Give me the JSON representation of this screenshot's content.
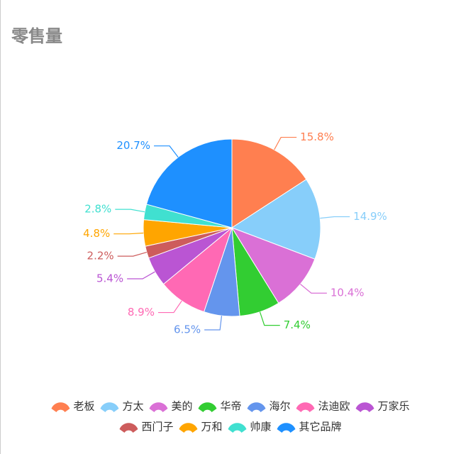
{
  "chart_data": {
    "type": "pie",
    "title": "零售量",
    "categories": [
      "老板",
      "方太",
      "美的",
      "华帝",
      "海尔",
      "法迪欧",
      "万家乐",
      "西门子",
      "万和",
      "帅康",
      "其它品牌"
    ],
    "values": [
      15.8,
      14.9,
      10.4,
      7.4,
      6.5,
      8.9,
      5.4,
      2.2,
      4.8,
      2.8,
      20.7
    ],
    "value_labels": [
      "15.8%",
      "14.9%",
      "10.4%",
      "7.4%",
      "6.5%",
      "8.9%",
      "5.4%",
      "2.2%",
      "4.8%",
      "2.8%",
      "20.7%"
    ],
    "colors": [
      "#ff7f50",
      "#87cefa",
      "#da70d6",
      "#32cd32",
      "#6495ed",
      "#ff69b4",
      "#ba55d3",
      "#cd5c5c",
      "#ffa500",
      "#40e0d0",
      "#1e90ff"
    ],
    "legend": "bottom"
  }
}
